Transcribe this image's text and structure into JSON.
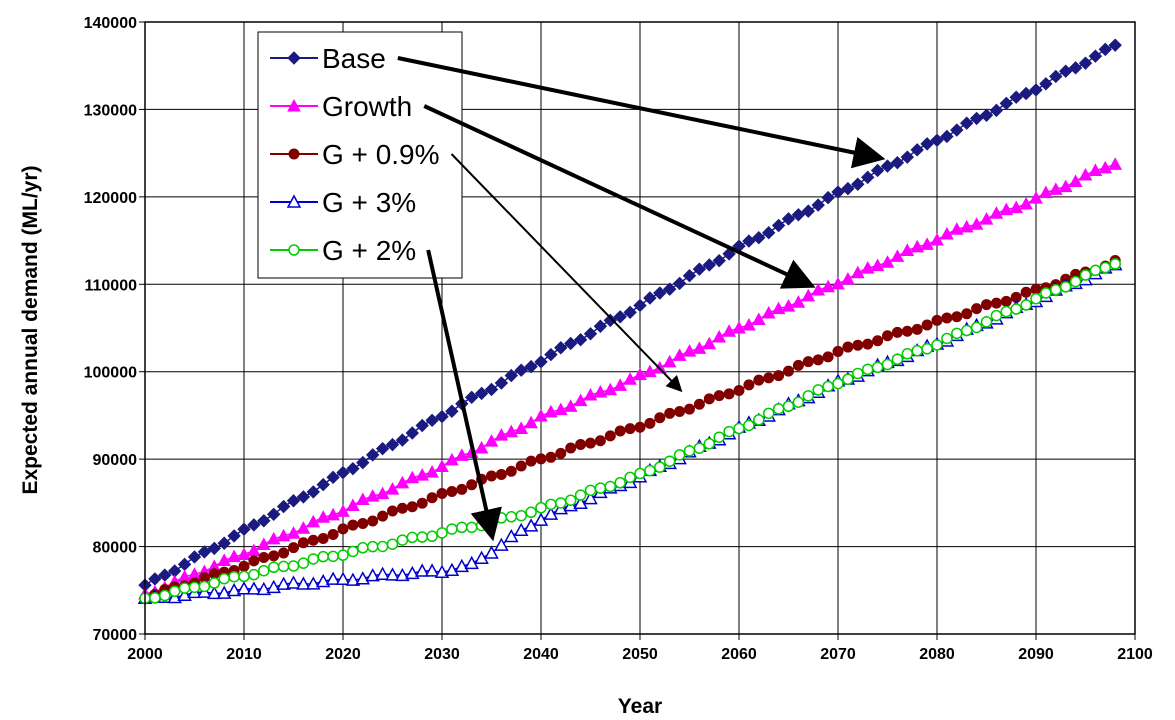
{
  "chart_data": {
    "type": "line",
    "title": "",
    "xlabel": "Year",
    "ylabel": "Expected annual demand (ML/yr)",
    "xlim": [
      2000,
      2100
    ],
    "ylim": [
      70000,
      140000
    ],
    "x_ticks": [
      2000,
      2010,
      2020,
      2030,
      2040,
      2050,
      2060,
      2070,
      2080,
      2090,
      2100
    ],
    "y_ticks": [
      70000,
      80000,
      90000,
      100000,
      110000,
      120000,
      130000,
      140000
    ],
    "x_tick_labels": [
      "2000",
      "2010",
      "2020",
      "2030",
      "2040",
      "2050",
      "2060",
      "2070",
      "2080",
      "2090",
      "2100"
    ],
    "y_tick_labels": [
      "70000",
      "80000",
      "90000",
      "100000",
      "110000",
      "120000",
      "130000",
      "140000"
    ],
    "grid": true,
    "legend_placement": "top-left inside plot",
    "x_start": 2000,
    "x_end": 2098,
    "series": [
      {
        "name": "Base",
        "color": "#1a1a80",
        "marker": "diamond-filled",
        "anchors": [
          [
            2000,
            75500
          ],
          [
            2010,
            81800
          ],
          [
            2020,
            88400
          ],
          [
            2030,
            95000
          ],
          [
            2040,
            101300
          ],
          [
            2050,
            107600
          ],
          [
            2060,
            114200
          ],
          [
            2070,
            120400
          ],
          [
            2080,
            126500
          ],
          [
            2090,
            132400
          ],
          [
            2098,
            137300
          ]
        ]
      },
      {
        "name": "Growth",
        "color": "#ff00ff",
        "marker": "triangle-filled",
        "anchors": [
          [
            2000,
            74500
          ],
          [
            2010,
            79200
          ],
          [
            2020,
            84200
          ],
          [
            2030,
            89200
          ],
          [
            2040,
            94800
          ],
          [
            2050,
            99500
          ],
          [
            2060,
            105000
          ],
          [
            2070,
            110200
          ],
          [
            2080,
            115200
          ],
          [
            2090,
            119800
          ],
          [
            2098,
            123900
          ]
        ]
      },
      {
        "name": "G + 0.9%",
        "color": "#800000",
        "marker": "circle-filled",
        "anchors": [
          [
            2000,
            74200
          ],
          [
            2010,
            77800
          ],
          [
            2020,
            81900
          ],
          [
            2030,
            85900
          ],
          [
            2040,
            90000
          ],
          [
            2050,
            93800
          ],
          [
            2060,
            98000
          ],
          [
            2070,
            102300
          ],
          [
            2080,
            105700
          ],
          [
            2090,
            109300
          ],
          [
            2098,
            112600
          ]
        ]
      },
      {
        "name": "G + 3%",
        "color": "#0000cc",
        "marker": "triangle-open",
        "anchors": [
          [
            2000,
            74000
          ],
          [
            2005,
            74600
          ],
          [
            2010,
            75000
          ],
          [
            2015,
            75700
          ],
          [
            2020,
            76200
          ],
          [
            2025,
            76800
          ],
          [
            2030,
            77200
          ],
          [
            2033,
            77900
          ],
          [
            2037,
            81000
          ],
          [
            2040,
            83200
          ],
          [
            2050,
            88000
          ],
          [
            2060,
            93500
          ],
          [
            2070,
            98800
          ],
          [
            2080,
            103200
          ],
          [
            2090,
            108200
          ],
          [
            2098,
            112200
          ]
        ]
      },
      {
        "name": "G + 2%",
        "color": "#00cc00",
        "marker": "circle-open",
        "anchors": [
          [
            2000,
            74000
          ],
          [
            2010,
            76700
          ],
          [
            2020,
            79200
          ],
          [
            2030,
            81600
          ],
          [
            2035,
            82800
          ],
          [
            2040,
            84300
          ],
          [
            2050,
            88200
          ],
          [
            2060,
            93500
          ],
          [
            2070,
            98800
          ],
          [
            2080,
            103200
          ],
          [
            2090,
            108300
          ],
          [
            2098,
            112500
          ]
        ]
      }
    ],
    "annotations": [
      {
        "type": "arrow",
        "from_series": "Base",
        "to": [
          2074,
          124500
        ],
        "weight": "thick"
      },
      {
        "type": "arrow",
        "from_series": "Growth",
        "to": [
          2067,
          110000
        ],
        "weight": "thick"
      },
      {
        "type": "arrow",
        "from_series": "G + 0.9%",
        "to": [
          2054,
          98000
        ],
        "weight": "thin"
      },
      {
        "type": "arrow",
        "from_series": "G + 2%",
        "to": [
          2035,
          81500
        ],
        "weight": "thick"
      }
    ]
  }
}
